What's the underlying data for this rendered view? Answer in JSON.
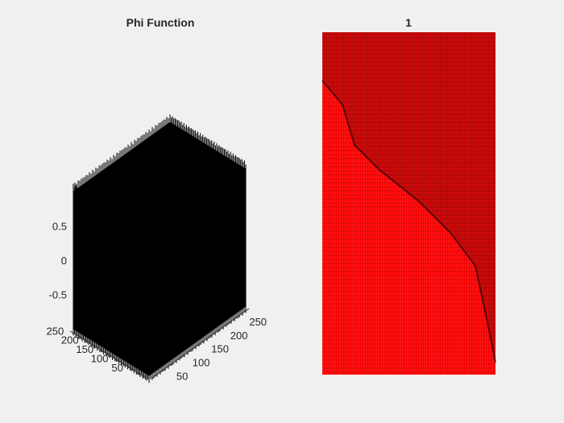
{
  "chart_data": [
    {
      "type": "surface",
      "title": "Phi Function",
      "x_ticks": [
        "50",
        "100",
        "150",
        "200",
        "250"
      ],
      "y_ticks": [
        "50",
        "100",
        "150",
        "200",
        "250"
      ],
      "z_ticks": [
        "-0.5",
        "0",
        "0.5"
      ],
      "x_range": [
        1,
        256
      ],
      "y_range": [
        1,
        256
      ],
      "z_range": [
        -1,
        1
      ],
      "surface_color": "#000000",
      "grid": false
    },
    {
      "type": "image",
      "title": "1",
      "background_color": "#ff0000",
      "contour_color": "#000000",
      "grid": false
    }
  ]
}
